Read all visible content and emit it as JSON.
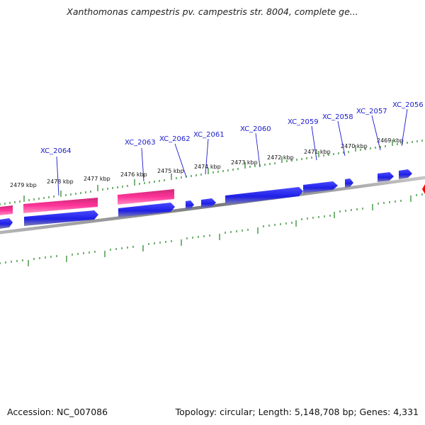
{
  "header": {
    "title": "Xanthomonas campestris pv. campestris str. 8004, complete ge..."
  },
  "footer": {
    "accession": "Accession: NC_007086",
    "summary": "Topology: circular; Length: 5,148,708 bp; Genes: 4,331"
  },
  "map": {
    "kbp_labels": [
      "2479 kbp",
      "2478 kbp",
      "2477 kbp",
      "2476 kbp",
      "2475 kbp",
      "2474 kbp",
      "2473 kbp",
      "2472 kbp",
      "2471 kbp",
      "2470 kbp",
      "2469 kbp"
    ],
    "gene_labels": [
      "XC_2064",
      "XC_2063",
      "XC_2062",
      "XC_2061",
      "XC_2060",
      "XC_2059",
      "XC_2058",
      "XC_2057",
      "XC_2056"
    ],
    "colors": {
      "cds": "#1f1fe6",
      "rrna": "#ff3399",
      "backbone": "#8a8a8a",
      "tick": "#2e8b2e",
      "label": "#1a1acc",
      "highlight": "#ff0000"
    }
  }
}
